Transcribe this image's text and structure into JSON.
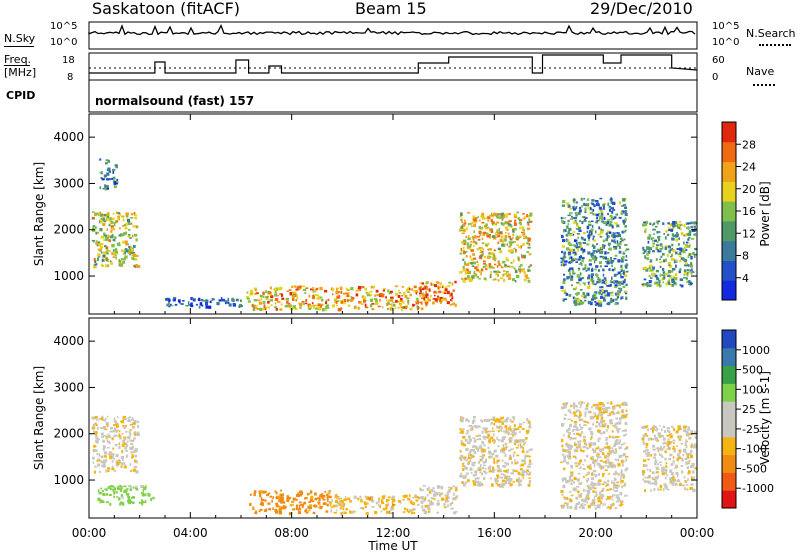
{
  "header": {
    "station": "Saskatoon (fitACF)",
    "beam": "Beam 15",
    "date": "29/Dec/2010"
  },
  "params": {
    "nsky_label": "N.Sky",
    "nsky_ticks": [
      "10^5",
      "10^0"
    ],
    "nsearch_label": "N.Search",
    "nsearch_ticks": [
      "10^5",
      "10^0"
    ],
    "freq_label": [
      "Freq.",
      "[MHz]"
    ],
    "freq_ticks": [
      "18",
      "8"
    ],
    "nave_label": "Nave",
    "nave_ticks": [
      "60",
      "0"
    ],
    "cpid_label": "CPID",
    "cpid_value": "normalsound (fast) 157"
  },
  "colors": {
    "power_scale": [
      "#1428e0",
      "#2250c8",
      "#3a7a9a",
      "#4f9a68",
      "#7fbf4a",
      "#e8d21e",
      "#f0a21a",
      "#f06a14",
      "#e02810"
    ],
    "velocity_scale": [
      "#e01414",
      "#f05a14",
      "#f08c14",
      "#f5b414",
      "#c8c8c0",
      "#c8c8c0",
      "#7fd04a",
      "#3aa048",
      "#3a7aaa",
      "#2248c0"
    ]
  },
  "chart_data": [
    {
      "type": "heatmap",
      "title": "Power",
      "xlabel": "Time UT",
      "ylabel": "Slant Range [km]",
      "colorbar_label": "Power [dB]",
      "colorbar_ticks": [
        "28",
        "24",
        "20",
        "16",
        "12",
        "8",
        "4"
      ],
      "xticks": [
        "00:00",
        "04:00",
        "08:00",
        "12:00",
        "16:00",
        "20:00",
        "00:00"
      ],
      "yticks": [
        "4000",
        "3000",
        "2000",
        "1000"
      ],
      "xlim_hours": [
        0,
        24
      ],
      "ylim_km": [
        180,
        4500
      ],
      "echo_regions": [
        {
          "t0": 0.1,
          "t1": 1.9,
          "r0": 1200,
          "r1": 2400,
          "power_db": 18
        },
        {
          "t0": 0.4,
          "t1": 1.1,
          "r0": 2900,
          "r1": 3550,
          "power_db": 10
        },
        {
          "t0": 3.0,
          "t1": 6.0,
          "r0": 350,
          "r1": 550,
          "power_db": 8
        },
        {
          "t0": 6.2,
          "t1": 13.3,
          "r0": 300,
          "r1": 800,
          "power_db": 22
        },
        {
          "t0": 13.0,
          "t1": 14.5,
          "r0": 400,
          "r1": 900,
          "power_db": 24
        },
        {
          "t0": 14.6,
          "t1": 17.4,
          "r0": 900,
          "r1": 2400,
          "power_db": 20
        },
        {
          "t0": 18.6,
          "t1": 21.2,
          "r0": 400,
          "r1": 2700,
          "power_db": 12
        },
        {
          "t0": 21.8,
          "t1": 23.9,
          "r0": 800,
          "r1": 2200,
          "power_db": 14
        }
      ]
    },
    {
      "type": "heatmap",
      "title": "Velocity",
      "xlabel": "Time UT",
      "ylabel": "Slant Range [km]",
      "colorbar_label": "Velocity [m s-1]",
      "colorbar_ticks": [
        "1000",
        "500",
        "100",
        "25",
        "-25",
        "-100",
        "-500",
        "-1000"
      ],
      "xticks": [
        "00:00",
        "04:00",
        "08:00",
        "12:00",
        "16:00",
        "20:00",
        "00:00"
      ],
      "yticks": [
        "4000",
        "3000",
        "2000",
        "1000"
      ],
      "xlim_hours": [
        0,
        24
      ],
      "ylim_km": [
        180,
        4500
      ],
      "echo_regions": [
        {
          "t0": 0.1,
          "t1": 1.9,
          "r0": 1200,
          "r1": 2400,
          "velocity": 0
        },
        {
          "t0": 0.3,
          "t1": 2.5,
          "r0": 500,
          "r1": 900,
          "velocity": 150
        },
        {
          "t0": 6.3,
          "t1": 9.5,
          "r0": 300,
          "r1": 800,
          "velocity": -150
        },
        {
          "t0": 9.5,
          "t1": 13.0,
          "r0": 300,
          "r1": 700,
          "velocity": -50
        },
        {
          "t0": 13.0,
          "t1": 14.5,
          "r0": 300,
          "r1": 900,
          "velocity": 0
        },
        {
          "t0": 14.6,
          "t1": 17.4,
          "r0": 900,
          "r1": 2400,
          "velocity": 0
        },
        {
          "t0": 18.6,
          "t1": 21.2,
          "r0": 400,
          "r1": 2700,
          "velocity": 0
        },
        {
          "t0": 21.8,
          "t1": 23.9,
          "r0": 800,
          "r1": 2200,
          "velocity": 0
        }
      ]
    }
  ]
}
